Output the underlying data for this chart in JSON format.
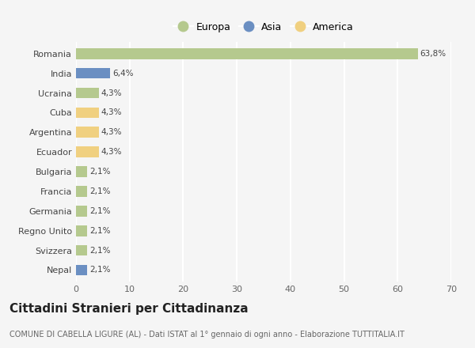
{
  "countries": [
    "Romania",
    "India",
    "Ucraina",
    "Cuba",
    "Argentina",
    "Ecuador",
    "Bulgaria",
    "Francia",
    "Germania",
    "Regno Unito",
    "Svizzera",
    "Nepal"
  ],
  "values": [
    63.8,
    6.4,
    4.3,
    4.3,
    4.3,
    4.3,
    2.1,
    2.1,
    2.1,
    2.1,
    2.1,
    2.1
  ],
  "labels": [
    "63,8%",
    "6,4%",
    "4,3%",
    "4,3%",
    "4,3%",
    "4,3%",
    "2,1%",
    "2,1%",
    "2,1%",
    "2,1%",
    "2,1%",
    "2,1%"
  ],
  "continents": [
    "Europa",
    "Asia",
    "Europa",
    "America",
    "America",
    "America",
    "Europa",
    "Europa",
    "Europa",
    "Europa",
    "Europa",
    "Asia"
  ],
  "colors": {
    "Europa": "#b5c98e",
    "Asia": "#6b8fc2",
    "America": "#f0d080"
  },
  "xlim": [
    0,
    70
  ],
  "xticks": [
    0,
    10,
    20,
    30,
    40,
    50,
    60,
    70
  ],
  "title": "Cittadini Stranieri per Cittadinanza",
  "subtitle": "COMUNE DI CABELLA LIGURE (AL) - Dati ISTAT al 1° gennaio di ogni anno - Elaborazione TUTTITALIA.IT",
  "background_color": "#f5f5f5",
  "grid_color": "#ffffff",
  "bar_height": 0.55,
  "title_fontsize": 11,
  "subtitle_fontsize": 7,
  "label_fontsize": 7.5,
  "tick_fontsize": 8,
  "legend_fontsize": 9
}
